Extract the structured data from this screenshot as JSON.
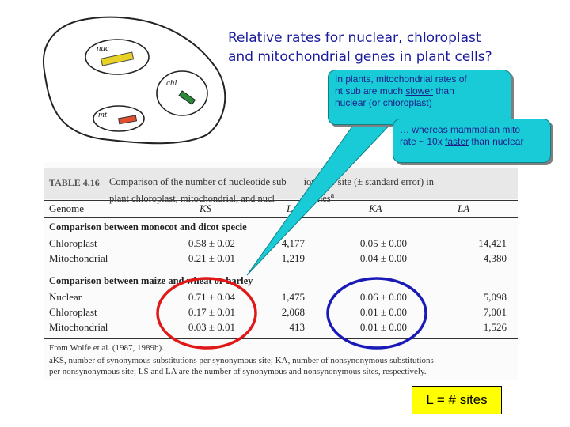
{
  "slide": {
    "title_lines": [
      "Relative rates for nuclear, chloroplast",
      "and mitochondrial genes in plant cells?"
    ],
    "callout1_lines": [
      "In plants, mitochondrial rates of",
      "nt sub are much ",
      "slower",
      " than",
      "nuclear (or chloroplast)"
    ],
    "callout2_lines": [
      "…  whereas mammalian mito",
      "rate ~ 10x ",
      "faster",
      " than nuclear"
    ],
    "sketch_labels": {
      "nuc": "nuc",
      "chl": "chl",
      "mt": "mt"
    },
    "bottom_box": "L = # sites"
  },
  "table": {
    "caption_label": "TABLE 4.16",
    "caption_visible_1": "Comparison of the number of nucleotide sub",
    "caption_visible_2": "ions per site (± standard error) in",
    "caption_visible_3": "plant chloroplast, mitochondrial, and nucl",
    "caption_visible_4": "nes",
    "caption_visible_5": "a",
    "headers": {
      "genome": "Genome",
      "ks": "KS",
      "ls": "L",
      "ka": "KA",
      "la": "LA"
    },
    "section1": "Comparison between monocot and dicot specie",
    "rows1": [
      {
        "name": "Chloroplast",
        "ks": "0.58 ± 0.02",
        "ls": "4,177",
        "ka": "0.05 ± 0.00",
        "la": "14,421"
      },
      {
        "name": "Mitochondrial",
        "ks": "0.21 ± 0.01",
        "ls": "1,219",
        "ka": "0.04 ± 0.00",
        "la": "4,380"
      }
    ],
    "section2": "Comparison between maize and wheat or barley",
    "rows2": [
      {
        "name": "Nuclear",
        "ks": "0.71 ± 0.04",
        "ls": "1,475",
        "ka": "0.06 ± 0.00",
        "la": "5,098"
      },
      {
        "name": "Chloroplast",
        "ks": "0.17 ± 0.01",
        "ls": "2,068",
        "ka": "0.01 ± 0.00",
        "la": "7,001"
      },
      {
        "name": "Mitochondrial",
        "ks": "0.03 ± 0.01",
        "ls": "413",
        "ka": "0.01 ± 0.00",
        "la": "1,526"
      }
    ],
    "source": "From Wolfe et al. (1987, 1989b).",
    "footnote_1": "aKS, number of synonymous substitutions per synonymous site; KA, number of nonsynonymous substitutions",
    "footnote_2": "per nonsynonymous site; LS and LA are the number of synonymous and nonsynonymous sites, respectively."
  },
  "colors": {
    "callout": "#19cbd6",
    "title": "#1a1a9c",
    "red_ring": "#e01818",
    "blue_ring": "#1a1ab8",
    "box": "#ffff00"
  }
}
